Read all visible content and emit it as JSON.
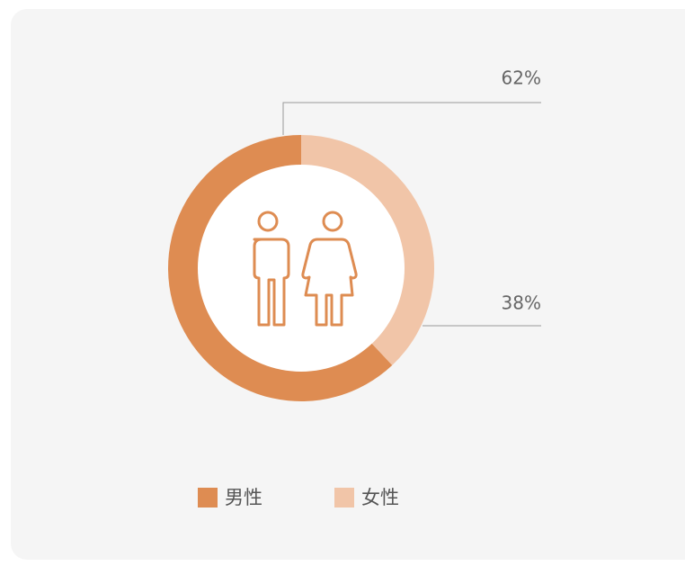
{
  "chart_data": {
    "type": "pie",
    "donut": true,
    "categories": [
      "男性",
      "女性"
    ],
    "values": [
      62,
      38
    ],
    "value_labels": [
      "62%",
      "38%"
    ],
    "colors": [
      "#de8c52",
      "#f1c5a8"
    ]
  }
}
